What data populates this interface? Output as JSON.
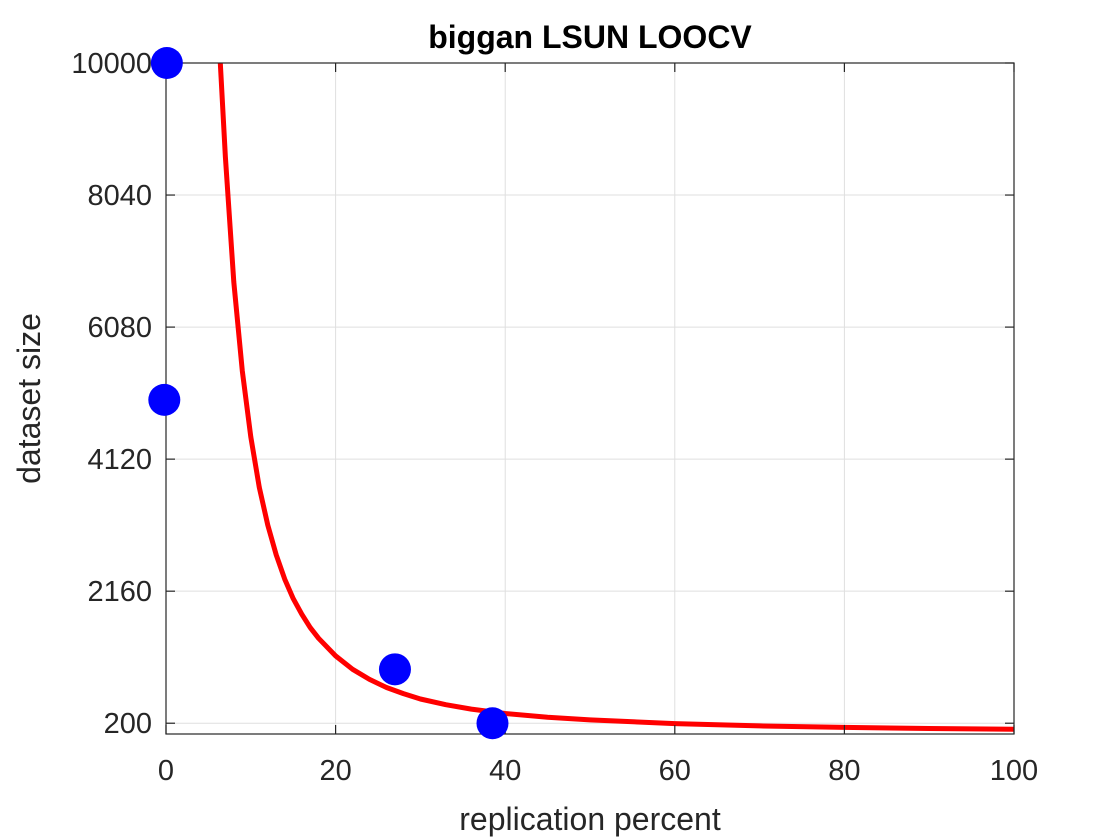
{
  "chart_data": {
    "type": "scatter",
    "title": "biggan LSUN LOOCV",
    "xlabel": "replication percent",
    "ylabel": "dataset size",
    "xlim": [
      0,
      100
    ],
    "ylim": [
      40,
      10000
    ],
    "x_ticks": [
      0,
      20,
      40,
      60,
      80,
      100
    ],
    "y_ticks": [
      200,
      2160,
      4120,
      6080,
      8040,
      10000
    ],
    "x_tick_labels": [
      "0",
      "20",
      "40",
      "60",
      "80",
      "100"
    ],
    "y_tick_labels": [
      "200",
      "2160",
      "4120",
      "6080",
      "8040",
      "10000"
    ],
    "grid": true,
    "series": [
      {
        "kind": "points",
        "color": "#0000ff",
        "x": [
          0.1,
          -0.2,
          27.0,
          38.5
        ],
        "y": [
          10000,
          5000,
          1000,
          200
        ]
      },
      {
        "kind": "fitted-curve",
        "color": "#ff0000",
        "x": [
          6.4,
          7,
          8,
          9,
          10,
          11,
          12,
          13,
          14,
          15,
          16,
          17,
          18,
          20,
          22,
          24,
          26,
          28,
          30,
          33,
          36,
          40,
          45,
          50,
          60,
          70,
          80,
          90,
          100
        ],
        "y": [
          10000,
          8600,
          6750,
          5430,
          4450,
          3700,
          3140,
          2700,
          2340,
          2050,
          1820,
          1620,
          1460,
          1200,
          1000,
          850,
          730,
          640,
          560,
          475,
          410,
          345,
          290,
          250,
          195,
          160,
          138,
          122,
          110
        ]
      }
    ]
  }
}
